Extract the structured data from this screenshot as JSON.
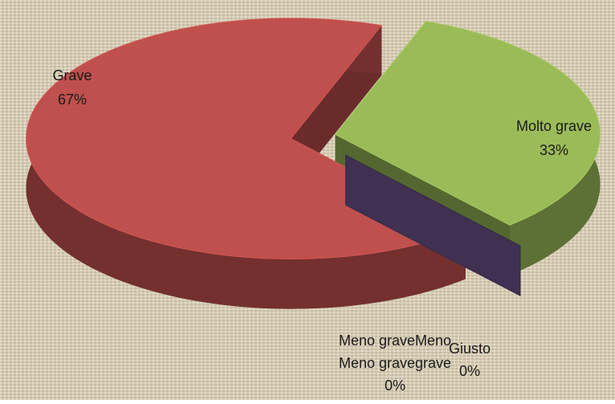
{
  "chart_data": {
    "type": "pie3d",
    "categories": [
      "Molto grave",
      "Meno grave",
      "Giusto",
      "Grave"
    ],
    "values": [
      33,
      0,
      0,
      67
    ],
    "value_labels": [
      "33%",
      "0%",
      "0%",
      "67%"
    ],
    "colors": [
      "#9bbb59",
      "#403152",
      "#4f81bd",
      "#c0504d"
    ],
    "legend": false
  }
}
